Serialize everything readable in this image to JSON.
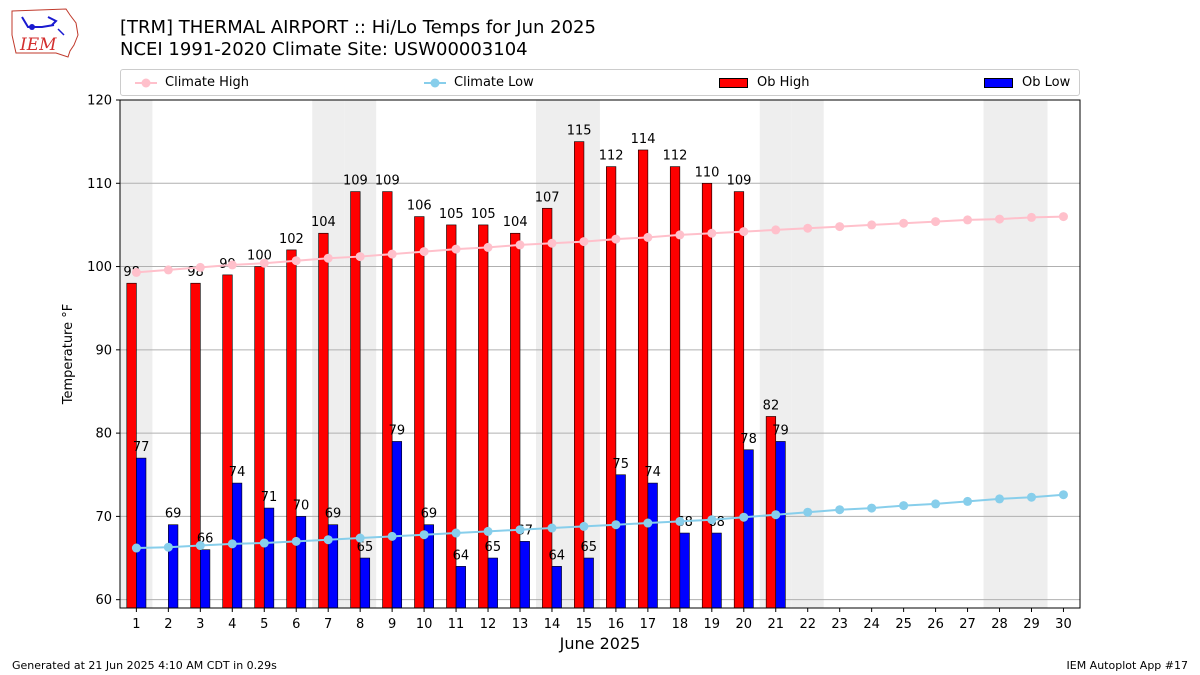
{
  "header": {
    "title_line1": "[TRM] THERMAL AIRPORT :: Hi/Lo Temps for Jun 2025",
    "title_line2": "NCEI 1991-2020 Climate Site: USW00003104"
  },
  "logo": {
    "text": "IEM"
  },
  "legend": {
    "items": [
      {
        "label": "Climate High",
        "color": "#ffc0cb",
        "kind": "line"
      },
      {
        "label": "Climate Low",
        "color": "#87ceeb",
        "kind": "line"
      },
      {
        "label": "Ob High",
        "color": "#ff0000",
        "kind": "bar"
      },
      {
        "label": "Ob Low",
        "color": "#0000ff",
        "kind": "bar"
      }
    ]
  },
  "footer": {
    "left": "Generated at 21 Jun 2025 4:10 AM CDT in 0.29s",
    "right": "IEM Autoplot App #17"
  },
  "chart_data": {
    "type": "bar",
    "xlabel": "June 2025",
    "ylabel": "Temperature °F",
    "ylim": [
      59,
      120
    ],
    "yticks": [
      60,
      70,
      80,
      90,
      100,
      110,
      120
    ],
    "days": [
      1,
      2,
      3,
      4,
      5,
      6,
      7,
      8,
      9,
      10,
      11,
      12,
      13,
      14,
      15,
      16,
      17,
      18,
      19,
      20,
      21,
      22,
      23,
      24,
      25,
      26,
      27,
      28,
      29,
      30
    ],
    "weekend_days": [
      1,
      7,
      8,
      14,
      15,
      21,
      22,
      28,
      29
    ],
    "grid": "horizontal",
    "legend_position": "top",
    "series": [
      {
        "name": "Ob High",
        "color": "#ff0000",
        "values": [
          98,
          null,
          98,
          99,
          100,
          102,
          104,
          109,
          109,
          106,
          105,
          105,
          104,
          107,
          115,
          112,
          114,
          112,
          110,
          109,
          82
        ]
      },
      {
        "name": "Ob Low",
        "color": "#0000ff",
        "values": [
          77,
          69,
          66,
          74,
          71,
          70,
          69,
          65,
          79,
          69,
          64,
          65,
          67,
          64,
          65,
          75,
          74,
          68,
          68,
          78,
          79
        ]
      },
      {
        "name": "Climate High",
        "color": "#ffc0cb",
        "values": [
          99.3,
          99.6,
          99.9,
          100.2,
          100.4,
          100.7,
          101.0,
          101.2,
          101.5,
          101.8,
          102.1,
          102.3,
          102.6,
          102.8,
          103.0,
          103.3,
          103.5,
          103.8,
          104.0,
          104.2,
          104.4,
          104.6,
          104.8,
          105.0,
          105.2,
          105.4,
          105.6,
          105.7,
          105.9,
          106.0
        ]
      },
      {
        "name": "Climate Low",
        "color": "#87ceeb",
        "values": [
          66.2,
          66.3,
          66.5,
          66.7,
          66.8,
          67.0,
          67.2,
          67.4,
          67.6,
          67.8,
          68.0,
          68.2,
          68.4,
          68.6,
          68.8,
          69.0,
          69.2,
          69.4,
          69.6,
          69.9,
          70.2,
          70.5,
          70.8,
          71.0,
          71.3,
          71.5,
          71.8,
          72.1,
          72.3,
          72.6
        ]
      }
    ]
  }
}
